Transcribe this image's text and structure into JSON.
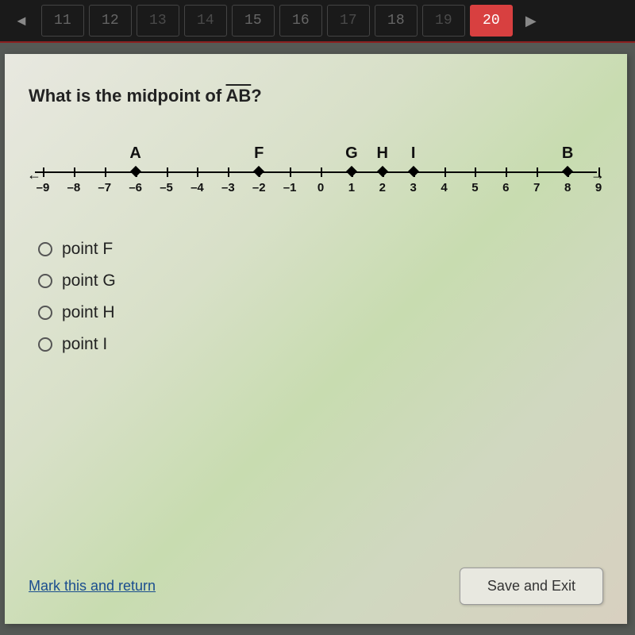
{
  "nav": {
    "items": [
      "11",
      "12",
      "13",
      "14",
      "15",
      "16",
      "17",
      "18",
      "19",
      "20"
    ],
    "active_index": 9,
    "dim_indexes": [
      2,
      3,
      6,
      8
    ]
  },
  "question": {
    "prefix": "What is the midpoint of ",
    "segment": "AB",
    "suffix": "?"
  },
  "numberline": {
    "min": -9,
    "max": 9,
    "ticks": [
      -9,
      -8,
      -7,
      -6,
      -5,
      -4,
      -3,
      -2,
      -1,
      0,
      1,
      2,
      3,
      4,
      5,
      6,
      7,
      8,
      9
    ],
    "points": [
      {
        "label": "A",
        "x": -6
      },
      {
        "label": "F",
        "x": -2
      },
      {
        "label": "G",
        "x": 1
      },
      {
        "label": "H",
        "x": 2
      },
      {
        "label": "I",
        "x": 3
      },
      {
        "label": "B",
        "x": 8
      }
    ]
  },
  "choices": [
    {
      "label": "point F"
    },
    {
      "label": "point G"
    },
    {
      "label": "point H"
    },
    {
      "label": "point I"
    }
  ],
  "footer": {
    "mark_link": "Mark this and return",
    "save_btn": "Save and Exit"
  },
  "style": {
    "nav_bg": "#1a1a1a",
    "nav_active_bg": "#d84040",
    "nav_border": "#8b2020",
    "content_gradient_start": "#e8e8e0",
    "content_gradient_mid": "#c8dcb0",
    "link_color": "#1a4d8f"
  }
}
